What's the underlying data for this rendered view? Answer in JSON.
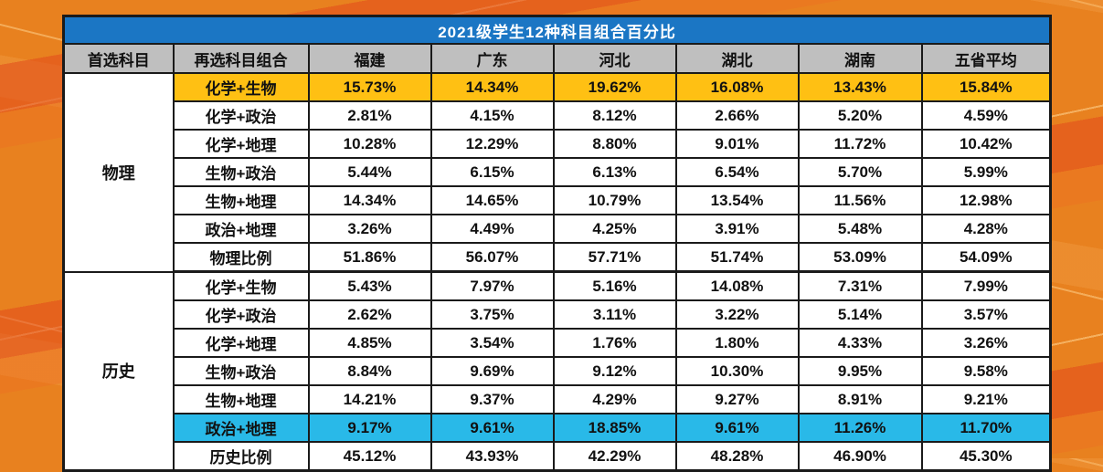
{
  "colors": {
    "title_bar_bg": "#1B76C4",
    "title_text": "#FFFFFF",
    "header_bg": "#BFBFBF",
    "row_bg": "#FFFFFF",
    "highlight_yellow": "#FFC013",
    "highlight_blue": "#29B9E8",
    "table_border": "#1A1A1A",
    "text": "#111111",
    "background_base": "#E8811F"
  },
  "chart_data": {
    "type": "table",
    "title": "2021级学生12种科目组合百分比",
    "columns": [
      "首选科目",
      "再选科目组合",
      "福建",
      "广东",
      "河北",
      "湖北",
      "湖南",
      "五省平均"
    ],
    "groups": [
      {
        "name": "物理",
        "row_span": 7
      },
      {
        "name": "历史",
        "row_span": 7
      }
    ],
    "rows": [
      {
        "group": "物理",
        "combo": "化学+生物",
        "values": [
          "15.73%",
          "14.34%",
          "19.62%",
          "16.08%",
          "13.43%",
          "15.84%"
        ],
        "highlight": "yellow"
      },
      {
        "group": "物理",
        "combo": "化学+政治",
        "values": [
          "2.81%",
          "4.15%",
          "8.12%",
          "2.66%",
          "5.20%",
          "4.59%"
        ],
        "highlight": null
      },
      {
        "group": "物理",
        "combo": "化学+地理",
        "values": [
          "10.28%",
          "12.29%",
          "8.80%",
          "9.01%",
          "11.72%",
          "10.42%"
        ],
        "highlight": null
      },
      {
        "group": "物理",
        "combo": "生物+政治",
        "values": [
          "5.44%",
          "6.15%",
          "6.13%",
          "6.54%",
          "5.70%",
          "5.99%"
        ],
        "highlight": null
      },
      {
        "group": "物理",
        "combo": "生物+地理",
        "values": [
          "14.34%",
          "14.65%",
          "10.79%",
          "13.54%",
          "11.56%",
          "12.98%"
        ],
        "highlight": null
      },
      {
        "group": "物理",
        "combo": "政治+地理",
        "values": [
          "3.26%",
          "4.49%",
          "4.25%",
          "3.91%",
          "5.48%",
          "4.28%"
        ],
        "highlight": null
      },
      {
        "group": "物理",
        "combo": "物理比例",
        "values": [
          "51.86%",
          "56.07%",
          "57.71%",
          "51.74%",
          "53.09%",
          "54.09%"
        ],
        "highlight": null
      },
      {
        "group": "历史",
        "combo": "化学+生物",
        "values": [
          "5.43%",
          "7.97%",
          "5.16%",
          "14.08%",
          "7.31%",
          "7.99%"
        ],
        "highlight": null
      },
      {
        "group": "历史",
        "combo": "化学+政治",
        "values": [
          "2.62%",
          "3.75%",
          "3.11%",
          "3.22%",
          "5.14%",
          "3.57%"
        ],
        "highlight": null
      },
      {
        "group": "历史",
        "combo": "化学+地理",
        "values": [
          "4.85%",
          "3.54%",
          "1.76%",
          "1.80%",
          "4.33%",
          "3.26%"
        ],
        "highlight": null
      },
      {
        "group": "历史",
        "combo": "生物+政治",
        "values": [
          "8.84%",
          "9.69%",
          "9.12%",
          "10.30%",
          "9.95%",
          "9.58%"
        ],
        "highlight": null
      },
      {
        "group": "历史",
        "combo": "生物+地理",
        "values": [
          "14.21%",
          "9.37%",
          "4.29%",
          "9.27%",
          "8.91%",
          "9.21%"
        ],
        "highlight": null
      },
      {
        "group": "历史",
        "combo": "政治+地理",
        "values": [
          "9.17%",
          "9.61%",
          "18.85%",
          "9.61%",
          "11.26%",
          "11.70%"
        ],
        "highlight": "blue"
      },
      {
        "group": "历史",
        "combo": "历史比例",
        "values": [
          "45.12%",
          "43.93%",
          "42.29%",
          "48.28%",
          "46.90%",
          "45.30%"
        ],
        "highlight": null
      }
    ]
  }
}
